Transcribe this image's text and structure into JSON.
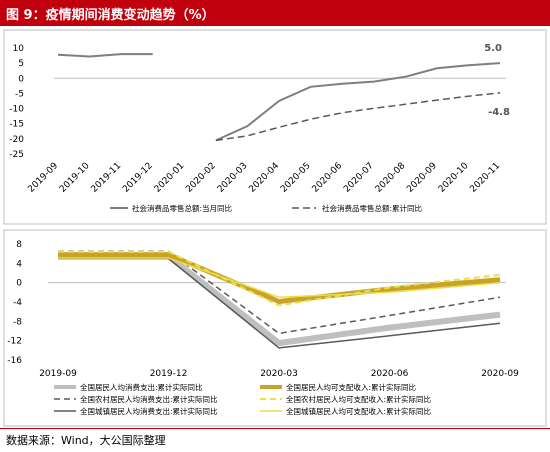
{
  "header": {
    "title": "图 9：疫情期间消费变动趋势（%）"
  },
  "footer": {
    "source": "数据来源：Wind，大公国际整理"
  },
  "colors": {
    "title_bg": "#c0000c",
    "line_gray": "#7f7f7f",
    "line_dark": "#595959",
    "line_light": "#bfbfbf",
    "gold": "#c9a227",
    "yellow": "#e8df4a"
  },
  "chart_data": [
    {
      "type": "line",
      "title": "",
      "x": [
        "2019-09",
        "2019-10",
        "2019-11",
        "2019-12",
        "2020-01",
        "2020-02",
        "2020-03",
        "2020-04",
        "2020-05",
        "2020-06",
        "2020-07",
        "2020-08",
        "2020-09",
        "2020-10",
        "2020-11"
      ],
      "ylim": [
        -25,
        10
      ],
      "yticks": [
        10,
        5,
        0,
        -5,
        -10,
        -15,
        -20,
        -25
      ],
      "series": [
        {
          "name": "社会消费品零售总额:当月同比",
          "style": "solid",
          "values": [
            7.8,
            7.2,
            8.0,
            8.0,
            null,
            -20.5,
            -15.8,
            -7.5,
            -2.8,
            -1.8,
            -1.1,
            0.5,
            3.3,
            4.3,
            5.0
          ]
        },
        {
          "name": "社会消费品零售总额:累计同比",
          "style": "dashed",
          "values": [
            null,
            null,
            null,
            null,
            null,
            -20.5,
            -19.0,
            -16.2,
            -13.5,
            -11.4,
            -9.9,
            -8.6,
            -7.2,
            -5.9,
            -4.8
          ]
        }
      ],
      "annotations": [
        {
          "text": "5.0",
          "series": 0,
          "index": 14
        },
        {
          "text": "-4.8",
          "series": 1,
          "index": 14
        }
      ],
      "legend": "bottom"
    },
    {
      "type": "line",
      "title": "",
      "x": [
        "2019-09",
        "2019-12",
        "2020-03",
        "2020-06",
        "2020-09"
      ],
      "ylim": [
        -16,
        8
      ],
      "yticks": [
        8,
        4,
        0,
        -4,
        -8,
        -12,
        -16
      ],
      "series": [
        {
          "name": "全国居民人均消费支出:累计实际同比",
          "style": "thick-light",
          "values": [
            5.5,
            5.5,
            -12.5,
            -9.3,
            -6.6
          ]
        },
        {
          "name": "全国农村居民人均消费支出:累计实际同比",
          "style": "dashed-dark",
          "values": [
            6.5,
            6.5,
            -10.5,
            -6.8,
            -3.0
          ]
        },
        {
          "name": "全国城镇居民人均消费支出:累计实际同比",
          "style": "solid-thin",
          "values": [
            5.0,
            5.0,
            -13.5,
            -11.0,
            -8.4
          ]
        },
        {
          "name": "全国居民人均可支配收入:累计实际同比",
          "style": "thick-gold",
          "values": [
            5.8,
            5.8,
            -3.9,
            -1.3,
            0.6
          ]
        },
        {
          "name": "全国农村居民人均可支配收入:累计实际同比",
          "style": "dashed-yellow",
          "values": [
            6.4,
            6.4,
            -4.7,
            -1.0,
            1.6
          ]
        },
        {
          "name": "全国城镇居民人均可支配收入:累计实际同比",
          "style": "thin-yellow",
          "values": [
            5.1,
            5.1,
            -3.0,
            -2.0,
            0.0
          ]
        }
      ],
      "legend": "bottom"
    }
  ]
}
